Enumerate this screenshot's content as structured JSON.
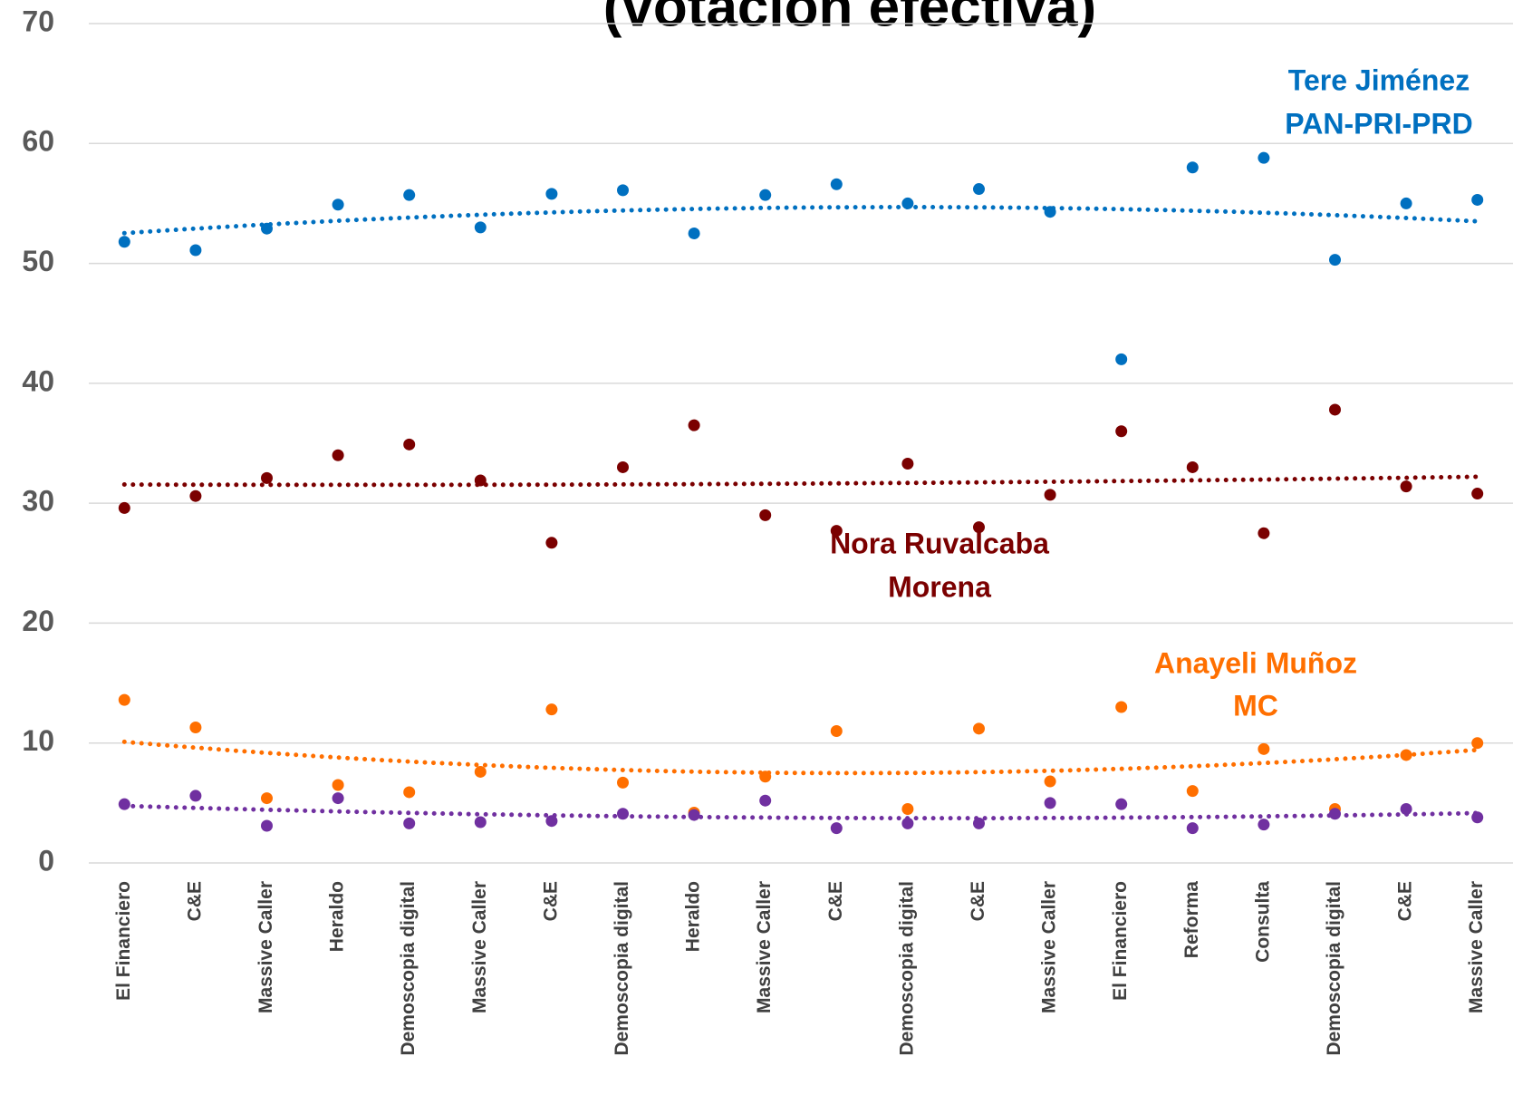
{
  "chart_data": {
    "type": "scatter",
    "title": "(votación efectiva)",
    "categories": [
      "El Financiero",
      "C&E",
      "Massive Caller",
      "Heraldo",
      "Demoscopia digital",
      "Massive Caller",
      "C&E",
      "Demoscopia digital",
      "Heraldo",
      "Massive Caller",
      "C&E",
      "Demoscopia digital",
      "C&E",
      "Massive Caller",
      "El Financiero",
      "Reforma",
      "Consulta",
      "Demoscopia digital",
      "C&E",
      "Massive Caller"
    ],
    "series": [
      {
        "name": "Tere Jiménez",
        "party": "PAN-PRI-PRD",
        "color": "#0070c0",
        "values": [
          51.8,
          51.1,
          52.9,
          54.9,
          55.7,
          53.0,
          55.8,
          56.1,
          52.5,
          55.7,
          56.6,
          55.0,
          56.2,
          54.3,
          42.0,
          58.0,
          58.8,
          50.3,
          55.0,
          55.3
        ]
      },
      {
        "name": "Nora Ruvalcaba",
        "party": "Morena",
        "color": "#7b0000",
        "values": [
          29.6,
          30.6,
          32.1,
          34.0,
          34.9,
          31.9,
          26.7,
          33.0,
          36.5,
          29.0,
          27.7,
          33.3,
          28.0,
          30.7,
          36.0,
          33.0,
          27.5,
          37.8,
          31.4,
          30.8
        ]
      },
      {
        "name": "Anayeli Muñoz",
        "party": "MC",
        "color": "#ff6f00",
        "values": [
          13.6,
          11.3,
          5.4,
          6.5,
          5.9,
          7.6,
          12.8,
          6.7,
          4.2,
          7.2,
          11.0,
          4.5,
          11.2,
          6.8,
          13.0,
          6.0,
          9.5,
          4.5,
          9.0,
          10.0
        ]
      },
      {
        "color": "#7030a0",
        "values": [
          4.9,
          5.6,
          3.1,
          5.4,
          3.3,
          3.4,
          3.5,
          4.1,
          4.0,
          5.2,
          2.9,
          3.3,
          3.3,
          5.0,
          4.9,
          2.9,
          3.2,
          4.1,
          4.5,
          3.8
        ]
      }
    ],
    "trendline": "polynomial",
    "ylim": [
      0,
      70
    ],
    "yticks": [
      0,
      10,
      20,
      30,
      40,
      50,
      60,
      70
    ],
    "grid": true
  }
}
